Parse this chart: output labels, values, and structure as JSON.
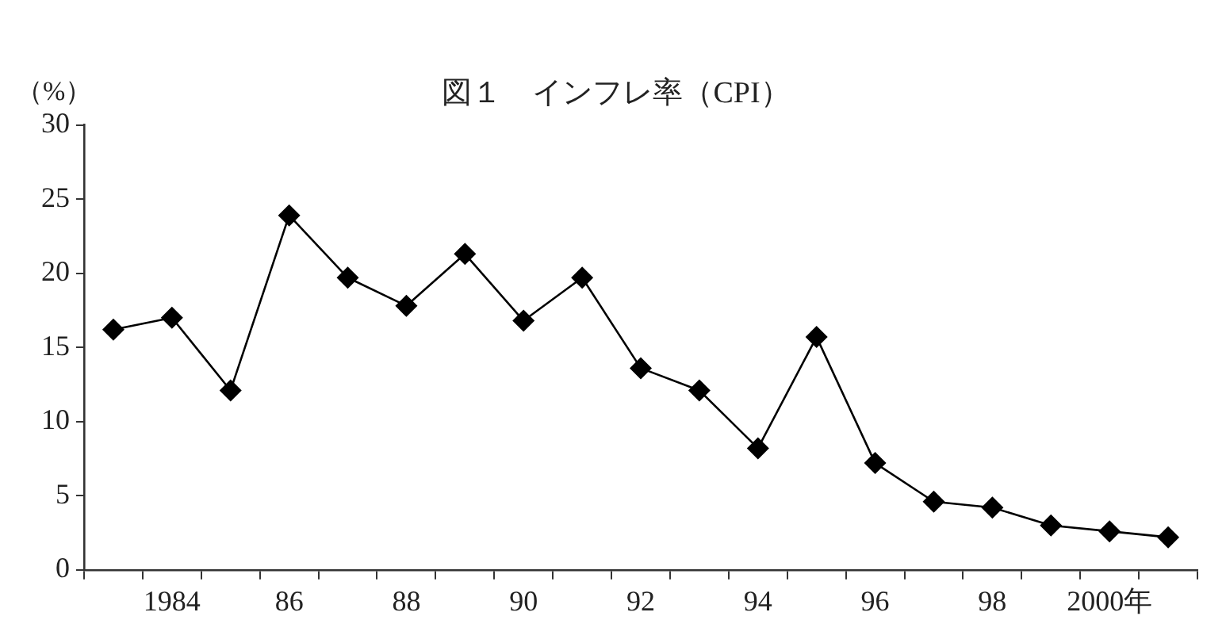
{
  "chart_data": {
    "type": "line",
    "title": "図１　インフレ率（CPI）",
    "ylabel": "（%）",
    "categories": [
      null,
      "1984",
      null,
      "86",
      null,
      "88",
      null,
      "90",
      null,
      "92",
      null,
      "94",
      null,
      "96",
      null,
      "98",
      null,
      "2000年",
      null
    ],
    "series": [
      {
        "color": "#000000",
        "values": [
          16.2,
          17.0,
          12.1,
          23.9,
          19.7,
          17.8,
          21.3,
          16.8,
          19.7,
          13.6,
          12.1,
          8.2,
          15.7,
          7.2,
          4.6,
          4.2,
          3.0,
          2.6,
          2.2
        ]
      }
    ],
    "ylim": [
      0,
      30
    ],
    "yticks": [
      0,
      5,
      10,
      15,
      20,
      25,
      30
    ],
    "grid": false,
    "legend": false,
    "marker": "diamond",
    "line_style": "solid"
  }
}
